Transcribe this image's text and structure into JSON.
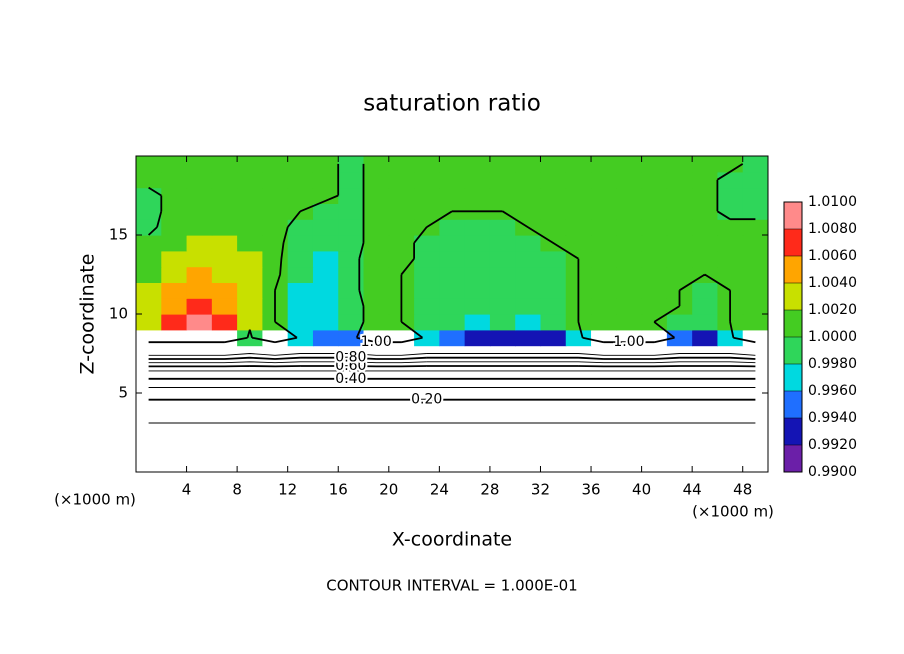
{
  "chart_data": {
    "type": "contour",
    "title": "saturation ratio",
    "xlabel": "X-coordinate",
    "ylabel": "Z-coordinate",
    "xunit": "(×1000 m)",
    "yunit": "(×1000 m)",
    "footer": "CONTOUR INTERVAL = 1.000E-01",
    "xlim": [
      0,
      50
    ],
    "ylim": [
      0,
      20
    ],
    "xticks": [
      4,
      8,
      12,
      16,
      20,
      24,
      28,
      32,
      36,
      40,
      44,
      48
    ],
    "yticks": [
      5,
      10,
      15
    ],
    "x": [
      1,
      3,
      5,
      7,
      9,
      11,
      13,
      15,
      17,
      19,
      21,
      23,
      25,
      27,
      29,
      31,
      33,
      35,
      37,
      39,
      41,
      43,
      45,
      47,
      49
    ],
    "y": [
      0.5,
      1.5,
      2.5,
      3.5,
      4.5,
      5.5,
      6.5,
      7.5,
      8.5,
      9.5,
      10.5,
      11.5,
      12.5,
      13.5,
      14.5,
      15.5,
      16.5,
      17.5,
      18.5,
      19.5
    ],
    "z": [
      [
        0.02,
        0.02,
        0.02,
        0.02,
        0.02,
        0.02,
        0.02,
        0.02,
        0.02,
        0.02,
        0.02,
        0.02,
        0.02,
        0.02,
        0.02,
        0.02,
        0.02,
        0.02,
        0.02,
        0.02,
        0.02,
        0.02,
        0.02,
        0.02,
        0.02
      ],
      [
        0.04,
        0.04,
        0.04,
        0.04,
        0.04,
        0.04,
        0.04,
        0.04,
        0.04,
        0.04,
        0.04,
        0.04,
        0.04,
        0.04,
        0.04,
        0.04,
        0.04,
        0.04,
        0.04,
        0.04,
        0.04,
        0.04,
        0.04,
        0.04,
        0.04
      ],
      [
        0.07,
        0.07,
        0.07,
        0.07,
        0.07,
        0.07,
        0.07,
        0.07,
        0.07,
        0.07,
        0.07,
        0.07,
        0.07,
        0.07,
        0.07,
        0.07,
        0.07,
        0.07,
        0.07,
        0.07,
        0.07,
        0.07,
        0.07,
        0.07,
        0.07
      ],
      [
        0.12,
        0.12,
        0.12,
        0.12,
        0.12,
        0.12,
        0.12,
        0.12,
        0.12,
        0.12,
        0.12,
        0.12,
        0.12,
        0.12,
        0.12,
        0.12,
        0.12,
        0.12,
        0.12,
        0.12,
        0.12,
        0.12,
        0.12,
        0.12,
        0.12
      ],
      [
        0.19,
        0.19,
        0.19,
        0.19,
        0.19,
        0.19,
        0.19,
        0.19,
        0.19,
        0.19,
        0.19,
        0.19,
        0.19,
        0.19,
        0.19,
        0.19,
        0.19,
        0.19,
        0.19,
        0.19,
        0.19,
        0.19,
        0.19,
        0.19,
        0.19
      ],
      [
        0.32,
        0.32,
        0.32,
        0.32,
        0.32,
        0.32,
        0.32,
        0.32,
        0.32,
        0.32,
        0.32,
        0.32,
        0.32,
        0.32,
        0.32,
        0.32,
        0.32,
        0.32,
        0.32,
        0.32,
        0.32,
        0.32,
        0.32,
        0.32,
        0.32
      ],
      [
        0.52,
        0.52,
        0.52,
        0.52,
        0.52,
        0.52,
        0.52,
        0.52,
        0.52,
        0.52,
        0.52,
        0.52,
        0.52,
        0.52,
        0.52,
        0.52,
        0.52,
        0.52,
        0.52,
        0.52,
        0.52,
        0.52,
        0.52,
        0.52,
        0.52
      ],
      [
        0.95,
        0.95,
        0.95,
        0.95,
        0.9,
        0.95,
        0.9,
        0.9,
        0.9,
        0.95,
        0.95,
        0.9,
        0.9,
        0.9,
        0.9,
        0.9,
        0.9,
        0.9,
        0.95,
        0.95,
        0.95,
        0.9,
        0.9,
        0.9,
        0.95
      ],
      [
        1.02,
        1.02,
        1.02,
        1.02,
        0.998,
        1.02,
        0.997,
        0.995,
        0.994,
        1.02,
        1.02,
        0.996,
        0.995,
        0.993,
        0.992,
        0.993,
        0.992,
        0.996,
        1.02,
        1.02,
        1.02,
        0.995,
        0.993,
        0.997,
        1.02
      ],
      [
        1.003,
        1.006,
        1.009,
        1.006,
        1.002,
        1.0,
        0.9975,
        0.9965,
        0.999,
        1.001,
        1.0,
        0.999,
        0.998,
        0.997,
        0.998,
        0.997,
        0.998,
        1.0,
        1.001,
        1.001,
        1.0,
        0.999,
        0.998,
        1.0,
        1.001
      ],
      [
        1.002,
        1.005,
        1.007,
        1.005,
        1.002,
        1.0,
        0.997,
        0.9965,
        0.999,
        1.001,
        1.0,
        0.999,
        0.998,
        0.998,
        0.999,
        0.998,
        0.999,
        1.0,
        1.001,
        1.001,
        1.001,
        1.0,
        0.999,
        1.0,
        1.001
      ],
      [
        1.002,
        1.004,
        1.005,
        1.004,
        1.002,
        1.0,
        0.9975,
        0.997,
        0.9995,
        1.001,
        1.0,
        0.9995,
        0.999,
        0.999,
        0.999,
        0.999,
        0.9995,
        1.0,
        1.001,
        1.001,
        1.001,
        1.0,
        0.9995,
        1.0,
        1.0005
      ],
      [
        1.001,
        1.003,
        1.004,
        1.003,
        1.002,
        1.0005,
        0.998,
        0.997,
        0.9995,
        1.001,
        1.0,
        0.9995,
        0.999,
        0.999,
        0.999,
        0.9995,
        0.9995,
        1.0,
        1.0,
        1.0005,
        1.001,
        1.001,
        1.0,
        1.0005,
        1.001
      ],
      [
        1.001,
        1.002,
        1.003,
        1.003,
        1.002,
        1.0005,
        0.9985,
        0.9975,
        0.9995,
        1.001,
        1.0005,
        0.9995,
        0.9995,
        0.9995,
        0.9995,
        0.9995,
        0.9995,
        1.0,
        1.0005,
        1.0005,
        1.001,
        1.001,
        1.0005,
        1.0005,
        1.001
      ],
      [
        1.0005,
        1.001,
        1.002,
        1.002,
        1.001,
        1.0005,
        0.999,
        0.998,
        0.9995,
        1.0005,
        1.0005,
        0.9995,
        0.9995,
        0.9995,
        0.9995,
        0.9995,
        1.0,
        1.0,
        1.0005,
        1.0005,
        1.001,
        1.001,
        1.001,
        1.001,
        1.001
      ],
      [
        0.9995,
        1.001,
        1.0015,
        1.0015,
        1.001,
        1.0005,
        0.9995,
        0.9985,
        0.9995,
        1.0005,
        1.0005,
        1.0,
        0.9995,
        0.9995,
        0.9995,
        1.0,
        1.0,
        1.0,
        1.0005,
        1.0005,
        1.0005,
        1.001,
        1.0005,
        1.0005,
        1.0005
      ],
      [
        0.9995,
        1.0005,
        1.001,
        1.001,
        1.0005,
        1.0005,
        1.0,
        0.999,
        0.9995,
        1.0005,
        1.0005,
        1.0,
        1.0,
        1.0,
        1.0,
        1.0,
        1.0,
        1.0,
        1.0005,
        1.0005,
        1.0005,
        1.0005,
        1.0005,
        0.9995,
        0.9995
      ],
      [
        0.9995,
        1.0005,
        1.0005,
        1.0005,
        1.0005,
        1.0005,
        1.0005,
        1.0005,
        0.9995,
        1.0005,
        1.0005,
        1.0005,
        1.0005,
        1.0005,
        1.0005,
        1.0005,
        1.0005,
        1.0005,
        1.0005,
        1.0005,
        1.0005,
        1.0005,
        1.0005,
        0.9995,
        0.9995
      ],
      [
        1.0005,
        1.0005,
        1.0005,
        1.0005,
        1.0005,
        1.0005,
        1.0005,
        1.0005,
        0.9995,
        1.0005,
        1.0005,
        1.0005,
        1.0005,
        1.0005,
        1.0005,
        1.0005,
        1.0005,
        1.0005,
        1.0005,
        1.0005,
        1.0005,
        1.0005,
        1.0005,
        0.9995,
        0.9995
      ],
      [
        1.0005,
        1.0005,
        1.0005,
        1.0005,
        1.0005,
        1.0005,
        1.0005,
        1.0005,
        0.9995,
        1.0005,
        1.0005,
        1.0005,
        1.0005,
        1.0005,
        1.0005,
        1.0005,
        1.0005,
        1.0005,
        1.0005,
        1.0005,
        1.0005,
        1.0005,
        1.0005,
        1.0005,
        0.9995
      ]
    ],
    "contour_levels": [
      0.1,
      {
        "value": 0.2,
        "label": "0.20"
      },
      0.3,
      {
        "value": 0.4,
        "label": "0.40"
      },
      0.5,
      {
        "value": 0.6,
        "label": "0.60"
      },
      0.7,
      {
        "value": 0.8,
        "label": "0.80"
      },
      0.9,
      {
        "value": 1.0,
        "label": "1.00"
      }
    ],
    "colorbar": {
      "lim": [
        0.99,
        1.01
      ],
      "ticks": [
        {
          "value": 0.99,
          "label": "0.9900"
        },
        {
          "value": 0.992,
          "label": "0.9920"
        },
        {
          "value": 0.994,
          "label": "0.9940"
        },
        {
          "value": 0.996,
          "label": "0.9960"
        },
        {
          "value": 0.998,
          "label": "0.9980"
        },
        {
          "value": 1.0,
          "label": "1.0000"
        },
        {
          "value": 1.002,
          "label": "1.0020"
        },
        {
          "value": 1.004,
          "label": "1.0040"
        },
        {
          "value": 1.006,
          "label": "1.0060"
        },
        {
          "value": 1.008,
          "label": "1.0080"
        },
        {
          "value": 1.01,
          "label": "1.0100"
        }
      ],
      "colors": [
        "#6b1fa8",
        "#1414b4",
        "#1f6fff",
        "#00d9e0",
        "#2fd65a",
        "#44cc22",
        "#c8e000",
        "#ffa500",
        "#ff2a1a",
        "#ff8a8a"
      ]
    }
  }
}
